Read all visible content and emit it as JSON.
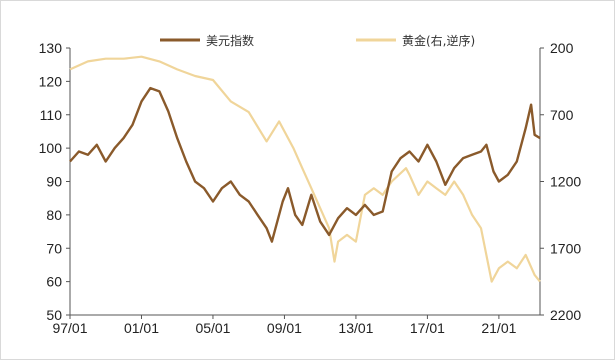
{
  "chart_data": {
    "type": "line",
    "title": "",
    "legend_position": "top",
    "grid": false,
    "x_tick_labels": [
      "97/01",
      "01/01",
      "05/01",
      "09/01",
      "13/01",
      "17/01",
      "21/01"
    ],
    "x_range": [
      1997.0,
      2023.3
    ],
    "y_left": {
      "ticks": [
        50,
        60,
        70,
        80,
        90,
        100,
        110,
        120,
        130
      ],
      "range": [
        50,
        130
      ]
    },
    "y_right": {
      "ticks": [
        200,
        700,
        1200,
        1700,
        2200
      ],
      "range": [
        200,
        2200
      ],
      "inverted": true
    },
    "series": [
      {
        "name": "美元指数",
        "axis": "left",
        "color": "#8a5a2b",
        "points": [
          [
            1997.0,
            96
          ],
          [
            1997.5,
            99
          ],
          [
            1998.0,
            98
          ],
          [
            1998.5,
            101
          ],
          [
            1999.0,
            96
          ],
          [
            1999.5,
            100
          ],
          [
            2000.0,
            103
          ],
          [
            2000.5,
            107
          ],
          [
            2001.0,
            114
          ],
          [
            2001.5,
            118
          ],
          [
            2002.0,
            117
          ],
          [
            2002.5,
            111
          ],
          [
            2003.0,
            103
          ],
          [
            2003.5,
            96
          ],
          [
            2004.0,
            90
          ],
          [
            2004.5,
            88
          ],
          [
            2005.0,
            84
          ],
          [
            2005.5,
            88
          ],
          [
            2006.0,
            90
          ],
          [
            2006.5,
            86
          ],
          [
            2007.0,
            84
          ],
          [
            2007.5,
            80
          ],
          [
            2008.0,
            76
          ],
          [
            2008.3,
            72
          ],
          [
            2008.9,
            84
          ],
          [
            2009.2,
            88
          ],
          [
            2009.6,
            80
          ],
          [
            2010.0,
            77
          ],
          [
            2010.5,
            86
          ],
          [
            2011.0,
            78
          ],
          [
            2011.5,
            74
          ],
          [
            2012.0,
            79
          ],
          [
            2012.5,
            82
          ],
          [
            2013.0,
            80
          ],
          [
            2013.5,
            83
          ],
          [
            2014.0,
            80
          ],
          [
            2014.5,
            81
          ],
          [
            2015.0,
            93
          ],
          [
            2015.5,
            97
          ],
          [
            2016.0,
            99
          ],
          [
            2016.5,
            96
          ],
          [
            2017.0,
            101
          ],
          [
            2017.5,
            96
          ],
          [
            2018.0,
            89
          ],
          [
            2018.5,
            94
          ],
          [
            2019.0,
            97
          ],
          [
            2019.5,
            98
          ],
          [
            2020.0,
            99
          ],
          [
            2020.3,
            101
          ],
          [
            2020.7,
            93
          ],
          [
            2021.0,
            90
          ],
          [
            2021.5,
            92
          ],
          [
            2022.0,
            96
          ],
          [
            2022.5,
            106
          ],
          [
            2022.8,
            113
          ],
          [
            2023.0,
            104
          ],
          [
            2023.3,
            103
          ]
        ]
      },
      {
        "name": "黄金(右,逆序)",
        "axis": "right",
        "color": "#f0d59a",
        "points": [
          [
            1997.0,
            360
          ],
          [
            1998.0,
            300
          ],
          [
            1999.0,
            280
          ],
          [
            2000.0,
            280
          ],
          [
            2001.0,
            265
          ],
          [
            2002.0,
            300
          ],
          [
            2003.0,
            360
          ],
          [
            2004.0,
            410
          ],
          [
            2005.0,
            440
          ],
          [
            2006.0,
            600
          ],
          [
            2007.0,
            680
          ],
          [
            2008.0,
            900
          ],
          [
            2008.7,
            750
          ],
          [
            2009.5,
            950
          ],
          [
            2010.0,
            1100
          ],
          [
            2010.5,
            1250
          ],
          [
            2011.0,
            1400
          ],
          [
            2011.5,
            1550
          ],
          [
            2011.8,
            1800
          ],
          [
            2012.0,
            1650
          ],
          [
            2012.5,
            1600
          ],
          [
            2013.0,
            1650
          ],
          [
            2013.5,
            1300
          ],
          [
            2014.0,
            1250
          ],
          [
            2014.5,
            1300
          ],
          [
            2015.0,
            1200
          ],
          [
            2015.8,
            1100
          ],
          [
            2016.0,
            1150
          ],
          [
            2016.5,
            1300
          ],
          [
            2017.0,
            1200
          ],
          [
            2017.5,
            1250
          ],
          [
            2018.0,
            1300
          ],
          [
            2018.5,
            1200
          ],
          [
            2019.0,
            1300
          ],
          [
            2019.5,
            1450
          ],
          [
            2020.0,
            1550
          ],
          [
            2020.6,
            1950
          ],
          [
            2021.0,
            1850
          ],
          [
            2021.5,
            1800
          ],
          [
            2022.0,
            1850
          ],
          [
            2022.5,
            1750
          ],
          [
            2023.0,
            1900
          ],
          [
            2023.3,
            1950
          ]
        ]
      }
    ]
  }
}
